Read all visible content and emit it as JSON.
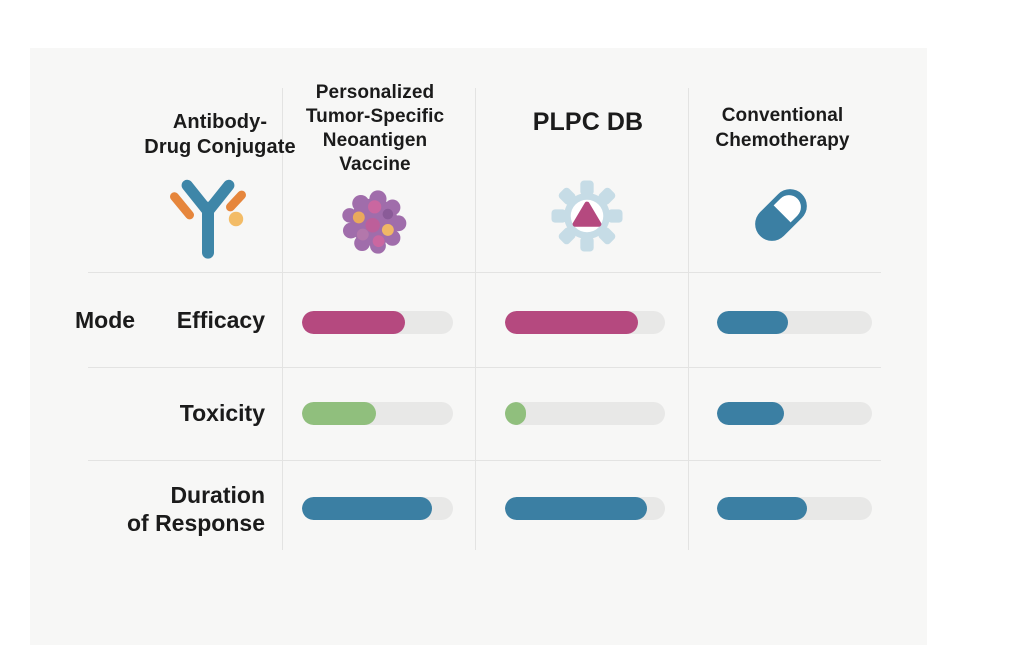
{
  "header": {
    "columns": [
      {
        "id": "adc",
        "label": "Antibody-\nDrug Conjugate",
        "icon": "antibody-icon"
      },
      {
        "id": "vaccine",
        "label": "Personalized\nTumor-Specific\nNeoantigen\nVaccine",
        "icon": "tumor-cell-icon"
      },
      {
        "id": "plpc",
        "label": "PLPC DB",
        "icon": "gear-triangle-icon"
      },
      {
        "id": "chemo",
        "label": "Conventional\nChemotherapy",
        "icon": "capsule-pill-icon"
      }
    ]
  },
  "mode_label": "Mode",
  "rows": [
    {
      "label": "Efficacy",
      "bars": [
        {
          "column": "vaccine",
          "value": 68,
          "color": "#b5497f"
        },
        {
          "column": "plpc",
          "value": 83,
          "color": "#b5497f"
        },
        {
          "column": "chemo",
          "value": 46,
          "color": "#3b7fa3"
        }
      ]
    },
    {
      "label": "Toxicity",
      "bars": [
        {
          "column": "vaccine",
          "value": 49,
          "color": "#90bf7d"
        },
        {
          "column": "plpc",
          "value": 13,
          "color": "#90bf7d"
        },
        {
          "column": "chemo",
          "value": 43,
          "color": "#3b7fa3"
        }
      ]
    },
    {
      "label": "Duration\nof Response",
      "bars": [
        {
          "column": "vaccine",
          "value": 86,
          "color": "#3b7fa3"
        },
        {
          "column": "plpc",
          "value": 89,
          "color": "#3b7fa3"
        },
        {
          "column": "chemo",
          "value": 58,
          "color": "#3b7fa3"
        }
      ]
    }
  ],
  "colors": {
    "efficacy_pink": "#b5497f",
    "toxicity_green": "#90bf7d",
    "response_blue": "#3b7fa3",
    "bar_track": "#e8e8e7",
    "panel_bg": "#f7f7f6",
    "grid_line": "#e3e3e2"
  }
}
